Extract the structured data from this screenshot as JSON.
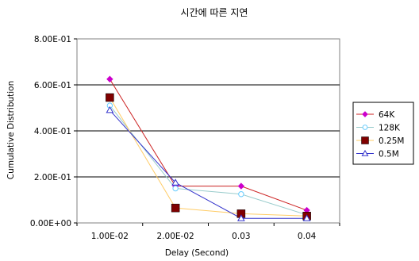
{
  "chart_data": {
    "type": "line",
    "title": "시간에 따른 지연",
    "xlabel": "Delay (Second)",
    "ylabel": "Cumulative Distribution",
    "categories": [
      "1.00E-02",
      "2.00E-02",
      "0.03",
      "0.04"
    ],
    "ylim": [
      0,
      0.8
    ],
    "yticks": [
      "0.00E+00",
      "2.00E-01",
      "4.00E-01",
      "6.00E-01",
      "8.00E-01"
    ],
    "grid": "horizontal",
    "legend_position": "right",
    "series": [
      {
        "name": "64K",
        "values": [
          0.625,
          0.16,
          0.16,
          0.055
        ],
        "color": "#cc00cc",
        "marker": "diamond"
      },
      {
        "name": "128K",
        "values": [
          0.51,
          0.15,
          0.125,
          0.035
        ],
        "color": "#66ccff",
        "marker": "circle"
      },
      {
        "name": "0.25M",
        "values": [
          0.545,
          0.065,
          0.04,
          0.03
        ],
        "color": "#800000",
        "marker": "square"
      },
      {
        "name": "0.5M",
        "values": [
          0.49,
          0.175,
          0.02,
          0.02
        ],
        "color": "#3333cc",
        "marker": "triangle"
      }
    ],
    "series_line_colors": [
      "#cc2222",
      "#99cccc",
      "#ffcc66",
      "#3333cc"
    ]
  }
}
